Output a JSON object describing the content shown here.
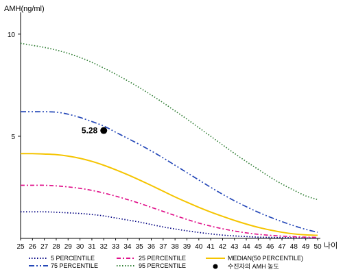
{
  "chart_data": {
    "type": "line",
    "ylabel": "AMH(ng/ml)",
    "xlabel": "나이",
    "xlim": [
      25,
      50
    ],
    "ylim": [
      0,
      11
    ],
    "x_ticks": [
      25,
      26,
      27,
      28,
      29,
      30,
      31,
      32,
      33,
      34,
      35,
      36,
      37,
      38,
      39,
      40,
      41,
      42,
      43,
      44,
      45,
      46,
      47,
      48,
      49,
      50
    ],
    "y_ticks": [
      5,
      10
    ],
    "x": [
      25,
      26,
      27,
      28,
      29,
      30,
      31,
      32,
      33,
      34,
      35,
      36,
      37,
      38,
      39,
      40,
      41,
      42,
      43,
      44,
      45,
      46,
      47,
      48,
      49,
      50
    ],
    "series": [
      {
        "name": "5 PERCENTILE",
        "color": "#000080",
        "dash": "1.5,2.5",
        "values": [
          1.3,
          1.3,
          1.3,
          1.28,
          1.25,
          1.22,
          1.17,
          1.1,
          1.0,
          0.9,
          0.8,
          0.68,
          0.56,
          0.46,
          0.37,
          0.29,
          0.22,
          0.16,
          0.12,
          0.09,
          0.06,
          0.05,
          0.04,
          0.03,
          0.02,
          0.02
        ]
      },
      {
        "name": "25 PERCENTILE",
        "color": "#e0108a",
        "dash": "6,3,2,3",
        "values": [
          2.6,
          2.6,
          2.6,
          2.57,
          2.52,
          2.45,
          2.35,
          2.22,
          2.07,
          1.9,
          1.72,
          1.52,
          1.32,
          1.12,
          0.93,
          0.75,
          0.6,
          0.47,
          0.36,
          0.27,
          0.2,
          0.15,
          0.11,
          0.08,
          0.06,
          0.05
        ]
      },
      {
        "name": "MEDIAN(50 PERCENTILE)",
        "color": "#f5c400",
        "dash": "",
        "values": [
          4.15,
          4.15,
          4.13,
          4.1,
          4.03,
          3.92,
          3.77,
          3.58,
          3.36,
          3.12,
          2.86,
          2.59,
          2.31,
          2.03,
          1.77,
          1.52,
          1.29,
          1.08,
          0.88,
          0.7,
          0.54,
          0.41,
          0.3,
          0.22,
          0.17,
          0.15
        ]
      },
      {
        "name": "75 PERCENTILE",
        "color": "#2548b8",
        "dash": "8,3,2,3,2,3",
        "values": [
          6.2,
          6.2,
          6.2,
          6.18,
          6.08,
          5.92,
          5.72,
          5.5,
          5.2,
          4.9,
          4.6,
          4.28,
          3.94,
          3.58,
          3.22,
          2.86,
          2.5,
          2.16,
          1.84,
          1.55,
          1.28,
          1.04,
          0.82,
          0.62,
          0.44,
          0.3
        ]
      },
      {
        "name": "95 PERCENTILE",
        "color": "#2e7d32",
        "dash": "1.5,2.5",
        "values": [
          9.55,
          9.45,
          9.35,
          9.22,
          9.06,
          8.86,
          8.62,
          8.34,
          8.04,
          7.72,
          7.38,
          7.02,
          6.64,
          6.24,
          5.84,
          5.42,
          5.0,
          4.58,
          4.16,
          3.76,
          3.38,
          3.0,
          2.66,
          2.36,
          2.08,
          1.9
        ]
      }
    ],
    "marker": {
      "name": "수진자의 AMH 농도",
      "x": 32,
      "y": 5.28,
      "label": "5.28",
      "color": "#000000"
    },
    "legend_position": "bottom",
    "grid": false
  }
}
